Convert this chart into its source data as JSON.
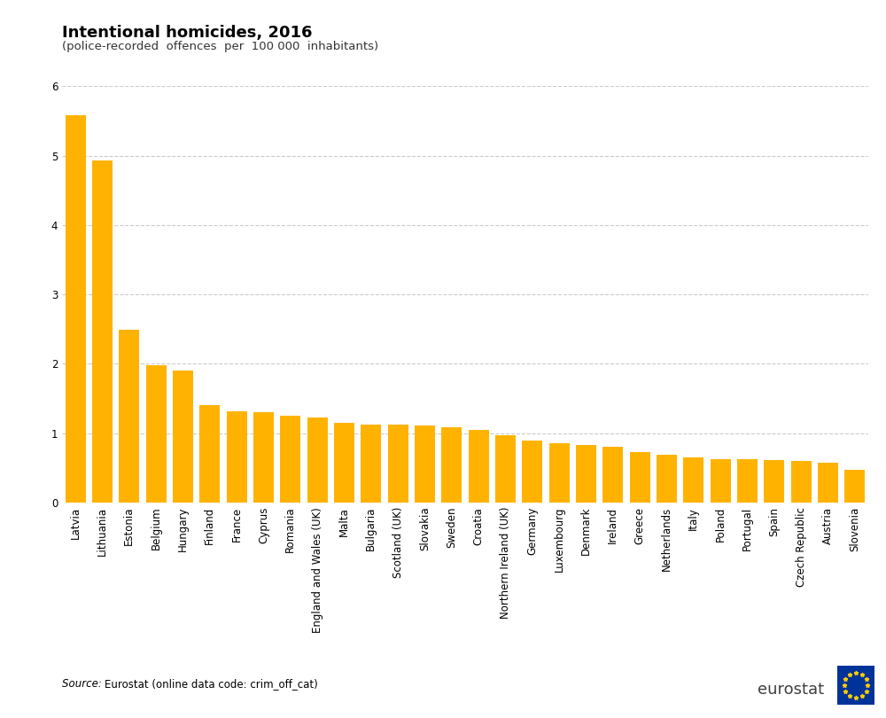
{
  "title": "Intentional homicides, 2016",
  "subtitle": "(police-recorded  offences  per  100 000  inhabitants)",
  "bar_color": "#FFB300",
  "background_color": "#ffffff",
  "source_italic": "Source: ",
  "source_normal": "Eurostat (online data code: crim_off_cat)",
  "categories": [
    "Latvia",
    "Lithuania",
    "Estonia",
    "Belgium",
    "Hungary",
    "Finland",
    "France",
    "Cyprus",
    "Romania",
    "England and Wales (UK)",
    "Malta",
    "Bulgaria",
    "Scotland (UK)",
    "Slovakia",
    "Sweden",
    "Croatia",
    "Northern Ireland (UK)",
    "Germany",
    "Luxembourg",
    "Denmark",
    "Ireland",
    "Greece",
    "Netherlands",
    "Italy",
    "Poland",
    "Portugal",
    "Spain",
    "Czech Republic",
    "Austria",
    "Slovenia"
  ],
  "values": [
    5.58,
    4.93,
    2.49,
    1.98,
    1.9,
    1.4,
    1.31,
    1.3,
    1.25,
    1.22,
    1.15,
    1.13,
    1.12,
    1.11,
    1.08,
    1.05,
    0.97,
    0.9,
    0.85,
    0.83,
    0.8,
    0.73,
    0.69,
    0.65,
    0.63,
    0.62,
    0.61,
    0.6,
    0.58,
    0.47
  ],
  "ylim": [
    0,
    6
  ],
  "yticks": [
    0,
    1,
    2,
    3,
    4,
    5,
    6
  ],
  "grid_color": "#cccccc",
  "title_fontsize": 13,
  "subtitle_fontsize": 9.5,
  "tick_fontsize": 8.5,
  "source_fontsize": 8.5,
  "eurostat_fontsize": 13
}
